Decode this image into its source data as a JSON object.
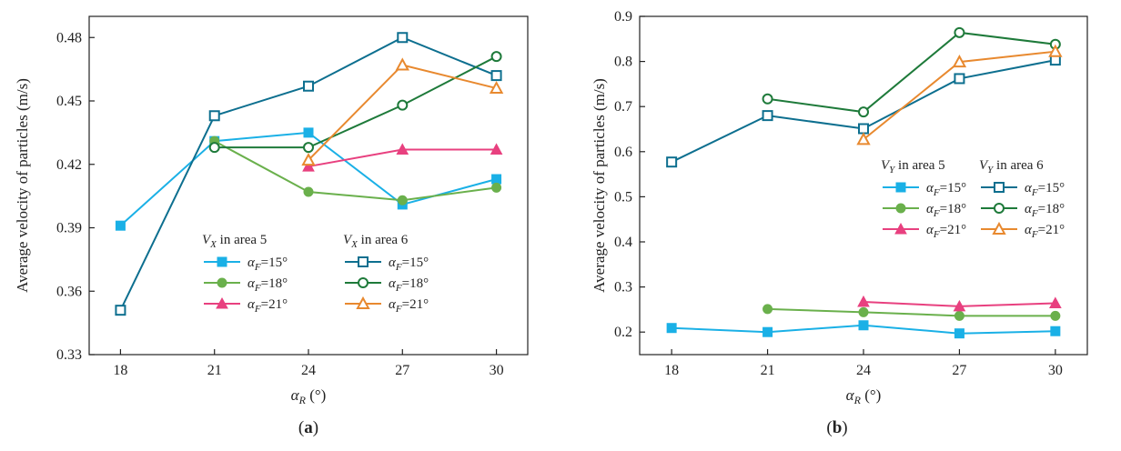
{
  "chart_data": [
    {
      "type": "line",
      "panel_label": "(a)",
      "xlabel": "α",
      "xlabel_sub": "R",
      "xlabel_unit": " (°)",
      "ylabel": "Average velocity of particles (m/s)",
      "xlim": [
        17,
        31
      ],
      "ylim": [
        0.33,
        0.49
      ],
      "xticks": [
        18,
        21,
        24,
        27,
        30
      ],
      "yticks": [
        0.33,
        0.36,
        0.39,
        0.42,
        0.45,
        0.48
      ],
      "ytick_labels": [
        "0.33",
        "0.36",
        "0.39",
        "0.42",
        "0.45",
        "0.48"
      ],
      "legend": {
        "placement": "lower-center",
        "col_headers": [
          {
            "main": "V",
            "sub": "X",
            "rest": " in area 5"
          },
          {
            "main": "V",
            "sub": "X",
            "rest": " in area 6"
          }
        ]
      },
      "series": [
        {
          "name": "αF=15° area 5",
          "sub": "F",
          "angle": "=15°",
          "col": 0,
          "color": "#1ab0e6",
          "marker": "square",
          "filled": true,
          "x": [
            18,
            21,
            24,
            27,
            30
          ],
          "values": [
            0.391,
            0.431,
            0.435,
            0.401,
            0.413
          ]
        },
        {
          "name": "αF=18° area 5",
          "sub": "F",
          "angle": "=18°",
          "col": 0,
          "color": "#6ab04c",
          "marker": "circle",
          "filled": true,
          "x": [
            21,
            24,
            27,
            30
          ],
          "values": [
            0.431,
            0.407,
            0.403,
            0.409
          ]
        },
        {
          "name": "αF=21° area 5",
          "sub": "F",
          "angle": "=21°",
          "col": 0,
          "color": "#e8407f",
          "marker": "triangle",
          "filled": true,
          "x": [
            24,
            27,
            30
          ],
          "values": [
            0.419,
            0.427,
            0.427
          ]
        },
        {
          "name": "αF=15° area 6",
          "sub": "F",
          "angle": "=15°",
          "col": 1,
          "color": "#0d6f8f",
          "marker": "square",
          "filled": false,
          "x": [
            18,
            21,
            24,
            27,
            30
          ],
          "values": [
            0.351,
            0.443,
            0.457,
            0.48,
            0.462
          ]
        },
        {
          "name": "αF=18° area 6",
          "sub": "F",
          "angle": "=18°",
          "col": 1,
          "color": "#1e7a3a",
          "marker": "circle",
          "filled": false,
          "x": [
            21,
            24,
            27,
            30
          ],
          "values": [
            0.428,
            0.428,
            0.448,
            0.471
          ]
        },
        {
          "name": "αF=21° area 6",
          "sub": "F",
          "angle": "=21°",
          "col": 1,
          "color": "#e8892f",
          "marker": "triangle",
          "filled": false,
          "x": [
            24,
            27,
            30
          ],
          "values": [
            0.422,
            0.467,
            0.456
          ]
        }
      ]
    },
    {
      "type": "line",
      "panel_label": "(b)",
      "xlabel": "α",
      "xlabel_sub": "R",
      "xlabel_unit": " (°)",
      "ylabel": "Average velocity of particles (m/s)",
      "xlim": [
        17,
        31
      ],
      "ylim": [
        0.15,
        0.9
      ],
      "xticks": [
        18,
        21,
        24,
        27,
        30
      ],
      "yticks": [
        0.2,
        0.3,
        0.4,
        0.5,
        0.6,
        0.7,
        0.8,
        0.9
      ],
      "ytick_labels": [
        "0.2",
        "0.3",
        "0.4",
        "0.5",
        "0.6",
        "0.7",
        "0.8",
        "0.9"
      ],
      "legend": {
        "placement": "center-right",
        "col_headers": [
          {
            "main": "V",
            "sub": "Y",
            "rest": "  in area 5"
          },
          {
            "main": "V",
            "sub": "Y",
            "rest": "  in area 6"
          }
        ]
      },
      "series": [
        {
          "name": "αF=15° area 5",
          "sub": "F",
          "angle": "=15°",
          "col": 0,
          "color": "#1ab0e6",
          "marker": "square",
          "filled": true,
          "x": [
            18,
            21,
            24,
            27,
            30
          ],
          "values": [
            0.209,
            0.2,
            0.215,
            0.197,
            0.202
          ]
        },
        {
          "name": "αF=18° area 5",
          "sub": "F",
          "angle": "=18°",
          "col": 0,
          "color": "#6ab04c",
          "marker": "circle",
          "filled": true,
          "x": [
            21,
            24,
            27,
            30
          ],
          "values": [
            0.251,
            0.244,
            0.236,
            0.236
          ]
        },
        {
          "name": "αF=21° area 5",
          "sub": "F",
          "angle": "=21°",
          "col": 0,
          "color": "#e8407f",
          "marker": "triangle",
          "filled": true,
          "x": [
            24,
            27,
            30
          ],
          "values": [
            0.267,
            0.257,
            0.264
          ]
        },
        {
          "name": "αF=15° area 6",
          "sub": "F",
          "angle": "=15°",
          "col": 1,
          "color": "#0d6f8f",
          "marker": "square",
          "filled": false,
          "x": [
            18,
            21,
            24,
            27,
            30
          ],
          "values": [
            0.577,
            0.68,
            0.651,
            0.762,
            0.803
          ]
        },
        {
          "name": "αF=18° area 6",
          "sub": "F",
          "angle": "=18°",
          "col": 1,
          "color": "#1e7a3a",
          "marker": "circle",
          "filled": false,
          "x": [
            21,
            24,
            27,
            30
          ],
          "values": [
            0.717,
            0.688,
            0.864,
            0.838
          ]
        },
        {
          "name": "αF=21° area 6",
          "sub": "F",
          "angle": "=21°",
          "col": 1,
          "color": "#e8892f",
          "marker": "triangle",
          "filled": false,
          "x": [
            24,
            27,
            30
          ],
          "values": [
            0.627,
            0.799,
            0.822
          ]
        }
      ]
    }
  ]
}
